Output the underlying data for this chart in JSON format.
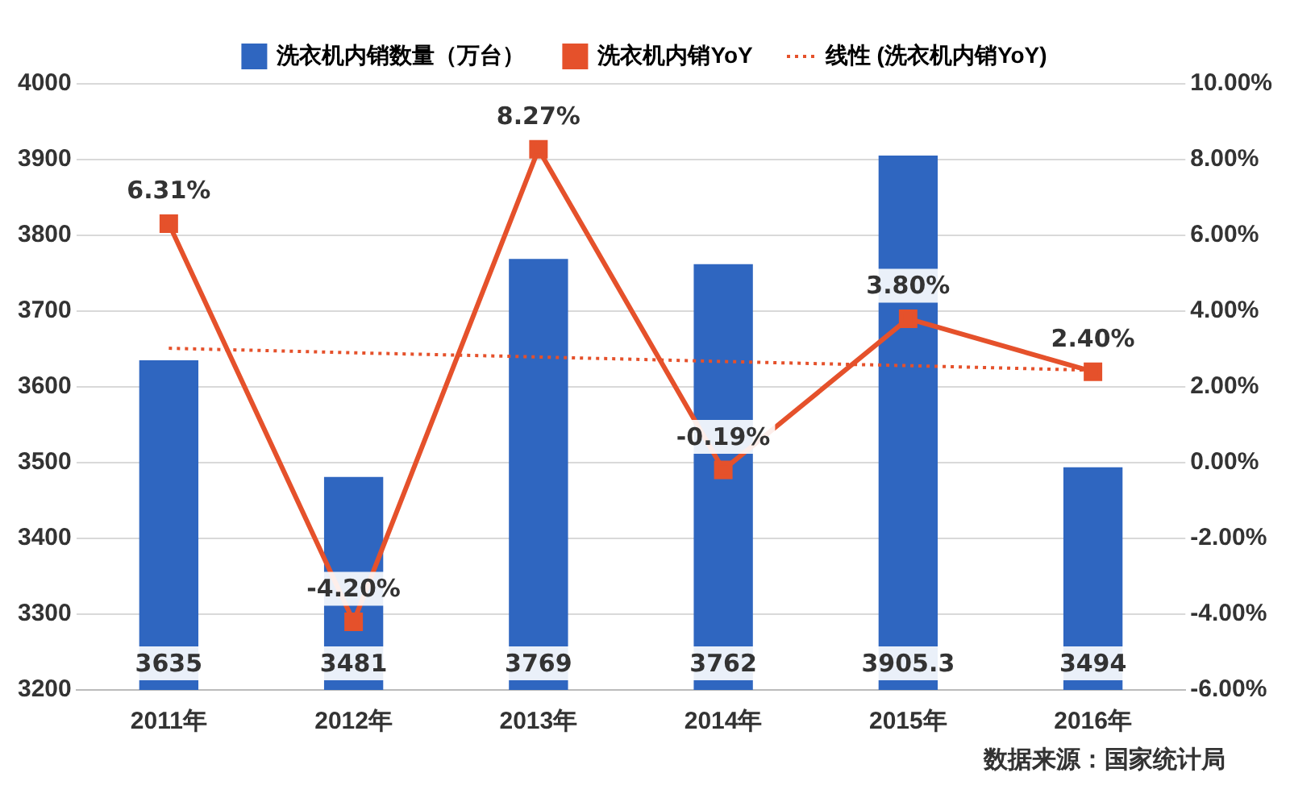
{
  "chart_data": {
    "type": "bar",
    "categories": [
      "2011年",
      "2012年",
      "2013年",
      "2014年",
      "2015年",
      "2016年"
    ],
    "series": [
      {
        "name": "洗衣机内销数量（万台）",
        "color": "#2f66c0",
        "values": [
          3635,
          3481,
          3769,
          3762,
          3905.3,
          3494
        ],
        "value_labels": [
          "3635",
          "3481",
          "3769",
          "3762",
          "3905.3",
          "3494"
        ]
      },
      {
        "name": "洗衣机内销YoY",
        "type": "line",
        "axis": "y2",
        "color": "#e5512b",
        "marker": "square",
        "line_style": "solid",
        "values": [
          6.31,
          -4.2,
          8.27,
          -0.19,
          3.8,
          2.4
        ],
        "value_labels": [
          "6.31%",
          "-4.20%",
          "8.27%",
          "-0.19%",
          "3.80%",
          "2.40%"
        ]
      },
      {
        "name": "线性 (洗衣机内销YoY)",
        "type": "line",
        "axis": "y2",
        "color": "#e5512b",
        "marker": "none",
        "line_style": "dotted",
        "values": [
          3.02,
          2.9,
          2.79,
          2.67,
          2.56,
          2.44
        ]
      }
    ],
    "ylim": [
      3200,
      4000
    ],
    "yticks": [
      3200,
      3300,
      3400,
      3500,
      3600,
      3700,
      3800,
      3900,
      4000
    ],
    "y2lim": [
      -6,
      10
    ],
    "y2ticks": [
      {
        "value": -6,
        "label": "-6.00%"
      },
      {
        "value": -4,
        "label": "-4.00%"
      },
      {
        "value": -2,
        "label": "-2.00%"
      },
      {
        "value": 0,
        "label": "0.00%"
      },
      {
        "value": 2,
        "label": "2.00%"
      },
      {
        "value": 4,
        "label": "4.00%"
      },
      {
        "value": 6,
        "label": "6.00%"
      },
      {
        "value": 8,
        "label": "8.00%"
      },
      {
        "value": 10,
        "label": "10.00%"
      }
    ],
    "grid": "y",
    "legend": "top",
    "annotations": [
      "数据来源：国家统计局"
    ]
  }
}
